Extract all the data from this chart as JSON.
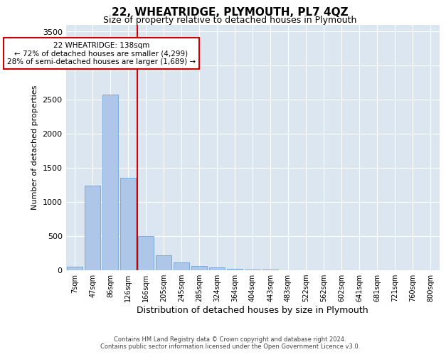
{
  "title": "22, WHEATRIDGE, PLYMOUTH, PL7 4QZ",
  "subtitle": "Size of property relative to detached houses in Plymouth",
  "xlabel": "Distribution of detached houses by size in Plymouth",
  "ylabel": "Number of detached properties",
  "categories": [
    "7sqm",
    "47sqm",
    "86sqm",
    "126sqm",
    "166sqm",
    "205sqm",
    "245sqm",
    "285sqm",
    "324sqm",
    "364sqm",
    "404sqm",
    "443sqm",
    "483sqm",
    "522sqm",
    "562sqm",
    "602sqm",
    "641sqm",
    "681sqm",
    "721sqm",
    "760sqm",
    "800sqm"
  ],
  "values": [
    50,
    1240,
    2570,
    1350,
    500,
    215,
    110,
    55,
    35,
    20,
    10,
    5,
    0,
    0,
    0,
    0,
    0,
    0,
    0,
    0,
    0
  ],
  "bar_color": "#aec6e8",
  "bar_edge_color": "#5b9bd5",
  "vline_x": 3.5,
  "vline_color": "#cc0000",
  "annotation_line1": "22 WHEATRIDGE: 138sqm",
  "annotation_line2": "← 72% of detached houses are smaller (4,299)",
  "annotation_line3": "28% of semi-detached houses are larger (1,689) →",
  "annotation_box_color": "#ffffff",
  "annotation_box_edge_color": "#cc0000",
  "ylim": [
    0,
    3600
  ],
  "yticks": [
    0,
    500,
    1000,
    1500,
    2000,
    2500,
    3000,
    3500
  ],
  "plot_bg_color": "#dce6f1",
  "footer_line1": "Contains HM Land Registry data © Crown copyright and database right 2024.",
  "footer_line2": "Contains public sector information licensed under the Open Government Licence v3.0."
}
